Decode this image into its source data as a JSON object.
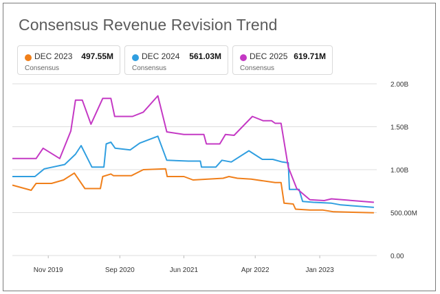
{
  "title": "Consensus Revenue Revision Trend",
  "legend": [
    {
      "label": "DEC 2023",
      "value": "497.55M",
      "sub": "Consensus",
      "color": "#f07f1a"
    },
    {
      "label": "DEC 2024",
      "value": "561.03M",
      "sub": "Consensus",
      "color": "#2f9ee0"
    },
    {
      "label": "DEC 2025",
      "value": "619.71M",
      "sub": "Consensus",
      "color": "#c438c4"
    }
  ],
  "chart_data": {
    "type": "line",
    "title": "Consensus Revenue Revision Trend",
    "xlabel": "",
    "ylabel": "",
    "x_ticks": [
      "Nov 2019",
      "Sep 2020",
      "Jun 2021",
      "Apr 2022",
      "Jan 2023"
    ],
    "y_ticks": [
      "0.00",
      "500.00M",
      "1.00B",
      "1.50B",
      "2.00B"
    ],
    "ylim": [
      0,
      2000000000
    ],
    "xlim": [
      "2019-06-01",
      "2023-09-01"
    ],
    "grid": true,
    "legend_position": "top",
    "series": [
      {
        "name": "DEC 2023",
        "color": "#f07f1a",
        "points": [
          [
            "2019-06-01",
            820000000
          ],
          [
            "2019-08-20",
            760000000
          ],
          [
            "2019-09-10",
            840000000
          ],
          [
            "2019-11-15",
            840000000
          ],
          [
            "2020-01-05",
            880000000
          ],
          [
            "2020-02-20",
            960000000
          ],
          [
            "2020-04-05",
            780000000
          ],
          [
            "2020-06-10",
            780000000
          ],
          [
            "2020-06-20",
            920000000
          ],
          [
            "2020-07-25",
            950000000
          ],
          [
            "2020-08-05",
            930000000
          ],
          [
            "2020-10-20",
            930000000
          ],
          [
            "2020-12-10",
            1000000000
          ],
          [
            "2021-03-15",
            1010000000
          ],
          [
            "2021-03-22",
            920000000
          ],
          [
            "2021-06-01",
            920000000
          ],
          [
            "2021-07-10",
            880000000
          ],
          [
            "2021-11-15",
            900000000
          ],
          [
            "2021-12-10",
            920000000
          ],
          [
            "2022-01-15",
            900000000
          ],
          [
            "2022-03-15",
            890000000
          ],
          [
            "2022-06-25",
            850000000
          ],
          [
            "2022-07-20",
            850000000
          ],
          [
            "2022-08-02",
            610000000
          ],
          [
            "2022-09-10",
            600000000
          ],
          [
            "2022-09-20",
            540000000
          ],
          [
            "2022-11-20",
            530000000
          ],
          [
            "2023-01-15",
            530000000
          ],
          [
            "2023-03-01",
            510000000
          ],
          [
            "2023-08-20",
            497550000
          ]
        ]
      },
      {
        "name": "DEC 2024",
        "color": "#2f9ee0",
        "points": [
          [
            "2019-06-01",
            920000000
          ],
          [
            "2019-09-05",
            920000000
          ],
          [
            "2019-10-15",
            1010000000
          ],
          [
            "2020-01-10",
            1060000000
          ],
          [
            "2020-02-25",
            1180000000
          ],
          [
            "2020-03-20",
            1280000000
          ],
          [
            "2020-05-05",
            1030000000
          ],
          [
            "2020-06-25",
            1030000000
          ],
          [
            "2020-07-05",
            1300000000
          ],
          [
            "2020-07-25",
            1320000000
          ],
          [
            "2020-08-12",
            1250000000
          ],
          [
            "2020-10-15",
            1230000000
          ],
          [
            "2020-11-25",
            1310000000
          ],
          [
            "2021-02-10",
            1390000000
          ],
          [
            "2021-03-20",
            1110000000
          ],
          [
            "2021-06-20",
            1100000000
          ],
          [
            "2021-08-10",
            1100000000
          ],
          [
            "2021-08-15",
            1030000000
          ],
          [
            "2021-10-15",
            1030000000
          ],
          [
            "2021-11-10",
            1110000000
          ],
          [
            "2021-12-20",
            1090000000
          ],
          [
            "2022-03-05",
            1220000000
          ],
          [
            "2022-05-01",
            1120000000
          ],
          [
            "2022-06-15",
            1120000000
          ],
          [
            "2022-07-25",
            1090000000
          ],
          [
            "2022-08-20",
            1080000000
          ],
          [
            "2022-08-25",
            770000000
          ],
          [
            "2022-10-05",
            770000000
          ],
          [
            "2022-10-20",
            630000000
          ],
          [
            "2022-12-05",
            620000000
          ],
          [
            "2023-02-20",
            610000000
          ],
          [
            "2023-04-01",
            590000000
          ],
          [
            "2023-08-20",
            561030000
          ]
        ]
      },
      {
        "name": "DEC 2025",
        "color": "#c438c4",
        "points": [
          [
            "2019-06-01",
            1130000000
          ],
          [
            "2019-09-10",
            1130000000
          ],
          [
            "2019-10-10",
            1250000000
          ],
          [
            "2019-12-20",
            1130000000
          ],
          [
            "2020-02-05",
            1450000000
          ],
          [
            "2020-02-25",
            1810000000
          ],
          [
            "2020-03-25",
            1810000000
          ],
          [
            "2020-05-01",
            1530000000
          ],
          [
            "2020-06-20",
            1830000000
          ],
          [
            "2020-07-25",
            1830000000
          ],
          [
            "2020-08-10",
            1620000000
          ],
          [
            "2020-10-25",
            1620000000
          ],
          [
            "2020-12-10",
            1670000000
          ],
          [
            "2021-02-10",
            1860000000
          ],
          [
            "2021-03-20",
            1440000000
          ],
          [
            "2021-06-01",
            1410000000
          ],
          [
            "2021-08-25",
            1410000000
          ],
          [
            "2021-09-05",
            1300000000
          ],
          [
            "2021-11-01",
            1300000000
          ],
          [
            "2021-11-25",
            1410000000
          ],
          [
            "2022-01-01",
            1400000000
          ],
          [
            "2022-03-20",
            1620000000
          ],
          [
            "2022-05-05",
            1570000000
          ],
          [
            "2022-06-10",
            1570000000
          ],
          [
            "2022-06-25",
            1540000000
          ],
          [
            "2022-07-20",
            1540000000
          ],
          [
            "2022-08-20",
            1030000000
          ],
          [
            "2022-09-25",
            780000000
          ],
          [
            "2022-11-20",
            650000000
          ],
          [
            "2023-01-20",
            640000000
          ],
          [
            "2023-02-20",
            660000000
          ],
          [
            "2023-08-20",
            619710000
          ]
        ]
      }
    ]
  }
}
